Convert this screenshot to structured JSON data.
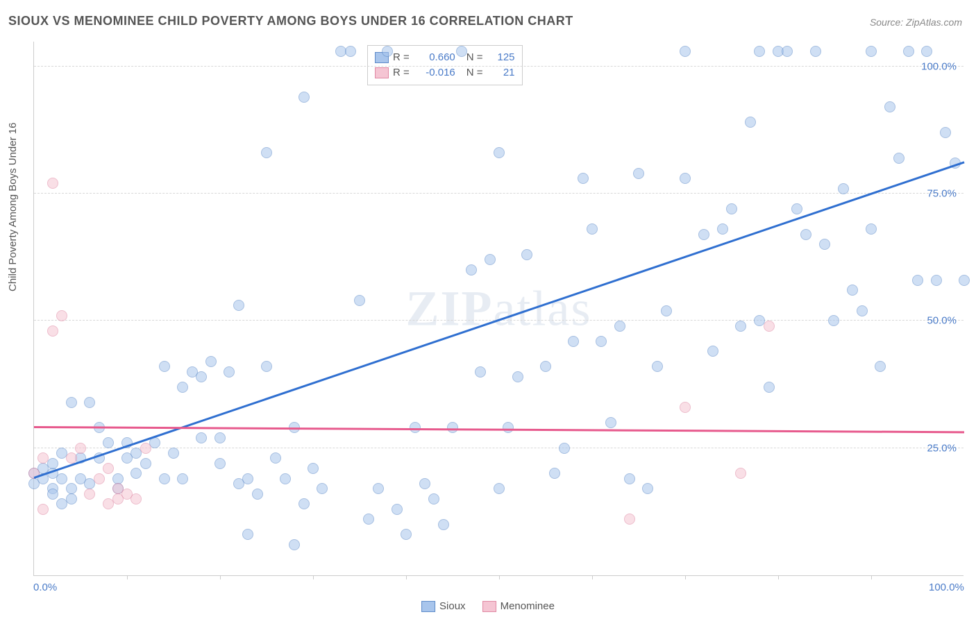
{
  "title": "SIOUX VS MENOMINEE CHILD POVERTY AMONG BOYS UNDER 16 CORRELATION CHART",
  "source": "Source: ZipAtlas.com",
  "ylabel": "Child Poverty Among Boys Under 16",
  "watermark_bold": "ZIP",
  "watermark_rest": "atlas",
  "chart": {
    "type": "scatter",
    "xlim": [
      0,
      100
    ],
    "ylim": [
      0,
      105
    ],
    "xtick_labels": [
      "0.0%",
      "100.0%"
    ],
    "xtick_positions": [
      0,
      100
    ],
    "xtick_minor": [
      10,
      20,
      30,
      40,
      50,
      60,
      70,
      80,
      90
    ],
    "ytick_labels": [
      "25.0%",
      "50.0%",
      "75.0%",
      "100.0%"
    ],
    "ytick_positions": [
      25,
      50,
      75,
      100
    ],
    "background_color": "#ffffff",
    "grid_color": "#d8d8d8",
    "axis_color": "#cccccc",
    "title_color": "#555555",
    "label_color": "#555555",
    "tick_label_color": "#4a7bc8",
    "title_fontsize": 18,
    "label_fontsize": 15,
    "tick_fontsize": 15,
    "marker_size": 16,
    "marker_style": "circle",
    "marker_opacity": 0.55,
    "series": [
      {
        "name": "Sioux",
        "color_fill": "#a8c5ec",
        "color_stroke": "#5e8bc9",
        "trend_color": "#2f6fd0",
        "trend_width": 2.5,
        "R": "0.660",
        "N": "125",
        "trend": {
          "x1": 0,
          "y1": 19,
          "x2": 100,
          "y2": 81
        },
        "points": [
          [
            0,
            18
          ],
          [
            0,
            20
          ],
          [
            1,
            21
          ],
          [
            1,
            19
          ],
          [
            2,
            17
          ],
          [
            2,
            20
          ],
          [
            2,
            16
          ],
          [
            2,
            22
          ],
          [
            3,
            14
          ],
          [
            3,
            19
          ],
          [
            3,
            24
          ],
          [
            4,
            17
          ],
          [
            4,
            15
          ],
          [
            4,
            34
          ],
          [
            5,
            19
          ],
          [
            5,
            23
          ],
          [
            6,
            18
          ],
          [
            6,
            34
          ],
          [
            7,
            23
          ],
          [
            7,
            29
          ],
          [
            8,
            26
          ],
          [
            9,
            19
          ],
          [
            9,
            17
          ],
          [
            10,
            23
          ],
          [
            10,
            26
          ],
          [
            11,
            20
          ],
          [
            11,
            24
          ],
          [
            12,
            22
          ],
          [
            13,
            26
          ],
          [
            14,
            19
          ],
          [
            14,
            41
          ],
          [
            15,
            24
          ],
          [
            16,
            37
          ],
          [
            16,
            19
          ],
          [
            17,
            40
          ],
          [
            18,
            39
          ],
          [
            18,
            27
          ],
          [
            19,
            42
          ],
          [
            20,
            22
          ],
          [
            20,
            27
          ],
          [
            21,
            40
          ],
          [
            22,
            18
          ],
          [
            22,
            53
          ],
          [
            23,
            19
          ],
          [
            23,
            8
          ],
          [
            24,
            16
          ],
          [
            25,
            41
          ],
          [
            25,
            83
          ],
          [
            26,
            23
          ],
          [
            27,
            19
          ],
          [
            28,
            29
          ],
          [
            28,
            6
          ],
          [
            29,
            14
          ],
          [
            29,
            94
          ],
          [
            30,
            21
          ],
          [
            31,
            17
          ],
          [
            33,
            103
          ],
          [
            34,
            103
          ],
          [
            35,
            54
          ],
          [
            36,
            11
          ],
          [
            37,
            17
          ],
          [
            38,
            103
          ],
          [
            39,
            13
          ],
          [
            40,
            8
          ],
          [
            41,
            29
          ],
          [
            42,
            18
          ],
          [
            43,
            15
          ],
          [
            44,
            10
          ],
          [
            45,
            29
          ],
          [
            46,
            103
          ],
          [
            47,
            60
          ],
          [
            48,
            40
          ],
          [
            49,
            62
          ],
          [
            50,
            17
          ],
          [
            50,
            83
          ],
          [
            51,
            29
          ],
          [
            52,
            39
          ],
          [
            53,
            63
          ],
          [
            55,
            41
          ],
          [
            56,
            20
          ],
          [
            57,
            25
          ],
          [
            58,
            46
          ],
          [
            59,
            78
          ],
          [
            60,
            68
          ],
          [
            61,
            46
          ],
          [
            62,
            30
          ],
          [
            63,
            49
          ],
          [
            64,
            19
          ],
          [
            65,
            79
          ],
          [
            66,
            17
          ],
          [
            67,
            41
          ],
          [
            68,
            52
          ],
          [
            70,
            78
          ],
          [
            70,
            103
          ],
          [
            72,
            67
          ],
          [
            73,
            44
          ],
          [
            74,
            68
          ],
          [
            75,
            72
          ],
          [
            76,
            49
          ],
          [
            77,
            89
          ],
          [
            78,
            50
          ],
          [
            78,
            103
          ],
          [
            79,
            37
          ],
          [
            80,
            103
          ],
          [
            81,
            103
          ],
          [
            82,
            72
          ],
          [
            83,
            67
          ],
          [
            84,
            103
          ],
          [
            85,
            65
          ],
          [
            86,
            50
          ],
          [
            87,
            76
          ],
          [
            88,
            56
          ],
          [
            89,
            52
          ],
          [
            90,
            103
          ],
          [
            90,
            68
          ],
          [
            91,
            41
          ],
          [
            92,
            92
          ],
          [
            93,
            82
          ],
          [
            94,
            103
          ],
          [
            95,
            58
          ],
          [
            96,
            103
          ],
          [
            97,
            58
          ],
          [
            98,
            87
          ],
          [
            99,
            81
          ],
          [
            100,
            58
          ]
        ]
      },
      {
        "name": "Menominee",
        "color_fill": "#f5c5d3",
        "color_stroke": "#e088a3",
        "trend_color": "#e75a8d",
        "trend_width": 2.5,
        "R": "-0.016",
        "N": "21",
        "trend": {
          "x1": 0,
          "y1": 29,
          "x2": 100,
          "y2": 28
        },
        "points": [
          [
            0,
            20
          ],
          [
            1,
            23
          ],
          [
            1,
            13
          ],
          [
            2,
            48
          ],
          [
            2,
            77
          ],
          [
            3,
            51
          ],
          [
            4,
            23
          ],
          [
            5,
            25
          ],
          [
            6,
            16
          ],
          [
            7,
            19
          ],
          [
            8,
            14
          ],
          [
            8,
            21
          ],
          [
            9,
            15
          ],
          [
            9,
            17
          ],
          [
            10,
            16
          ],
          [
            11,
            15
          ],
          [
            12,
            25
          ],
          [
            64,
            11
          ],
          [
            70,
            33
          ],
          [
            76,
            20
          ],
          [
            79,
            49
          ]
        ]
      }
    ]
  },
  "legend": {
    "bottom": [
      "Sioux",
      "Menominee"
    ],
    "stats_prefix": "R =",
    "n_prefix": "N ="
  }
}
